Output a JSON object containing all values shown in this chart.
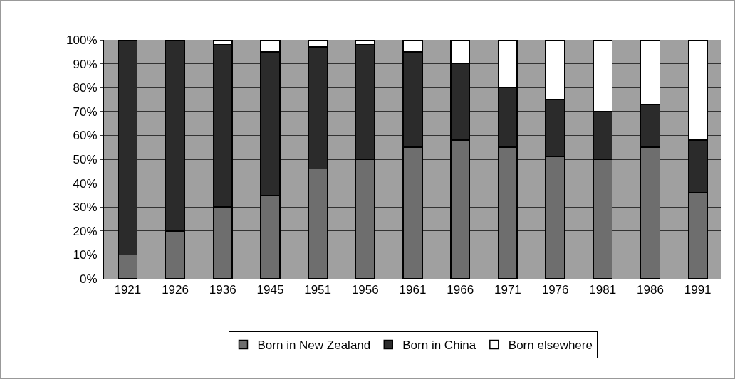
{
  "chart_data": {
    "type": "bar",
    "stacked": true,
    "categories": [
      "1921",
      "1926",
      "1936",
      "1945",
      "1951",
      "1956",
      "1961",
      "1966",
      "1971",
      "1976",
      "1981",
      "1986",
      "1991"
    ],
    "series": [
      {
        "name": "Born in New Zealand",
        "color": "#6e6e6e",
        "values": [
          10,
          20,
          30,
          35,
          46,
          50,
          55,
          58,
          55,
          51,
          50,
          55,
          36
        ]
      },
      {
        "name": "Born in China",
        "color": "#2b2b2b",
        "values": [
          90,
          80,
          68,
          60,
          51,
          48,
          40,
          32,
          25,
          24,
          20,
          18,
          22
        ]
      },
      {
        "name": "Born elsewhere",
        "color": "#ffffff",
        "values": [
          0,
          0,
          2,
          5,
          3,
          2,
          5,
          10,
          20,
          25,
          30,
          27,
          42
        ]
      }
    ],
    "ylim": [
      0,
      100
    ],
    "yticks": [
      {
        "value": 0,
        "label": "0%"
      },
      {
        "value": 10,
        "label": "10%"
      },
      {
        "value": 20,
        "label": "20%"
      },
      {
        "value": 30,
        "label": "30%"
      },
      {
        "value": 40,
        "label": "40%"
      },
      {
        "value": 50,
        "label": "50%"
      },
      {
        "value": 60,
        "label": "60%"
      },
      {
        "value": 70,
        "label": "70%"
      },
      {
        "value": 80,
        "label": "80%"
      },
      {
        "value": 90,
        "label": "90%"
      },
      {
        "value": 100,
        "label": "100%"
      }
    ],
    "grid": "y",
    "legend": "bottom"
  }
}
